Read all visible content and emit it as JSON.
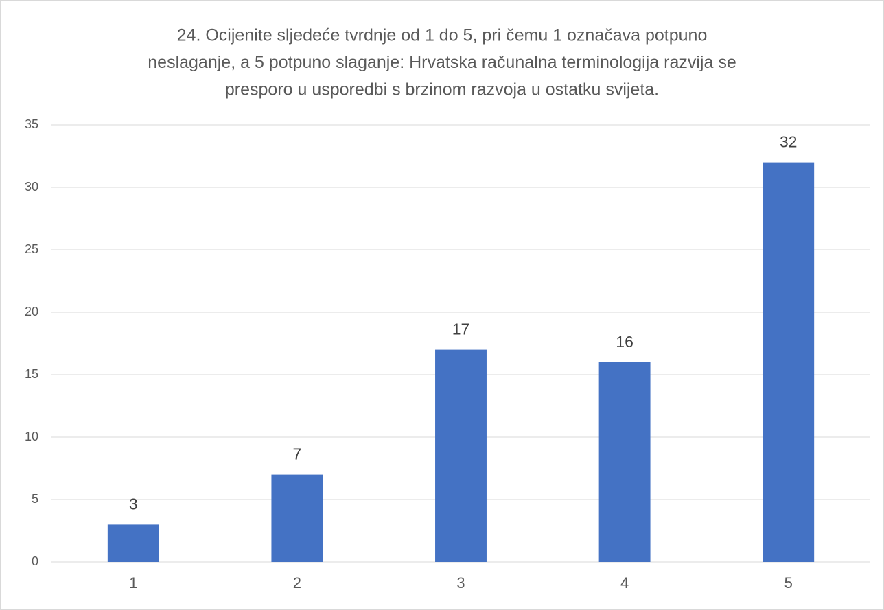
{
  "chart_data": {
    "type": "bar",
    "title": [
      "24. Ocijenite sljedeće tvrdnje od 1 do 5, pri čemu 1 označava potpuno",
      "neslaganje, a 5 potpuno slaganje: Hrvatska računalna terminologija razvija se",
      "presporo u usporedbi s brzinom razvoja u ostatku svijeta."
    ],
    "categories": [
      "1",
      "2",
      "3",
      "4",
      "5"
    ],
    "values": [
      3,
      7,
      17,
      16,
      32
    ],
    "color": "#4472c4",
    "ylim": [
      0,
      35
    ],
    "yticks": [
      0,
      5,
      10,
      15,
      20,
      25,
      30,
      35
    ],
    "grid": true
  }
}
